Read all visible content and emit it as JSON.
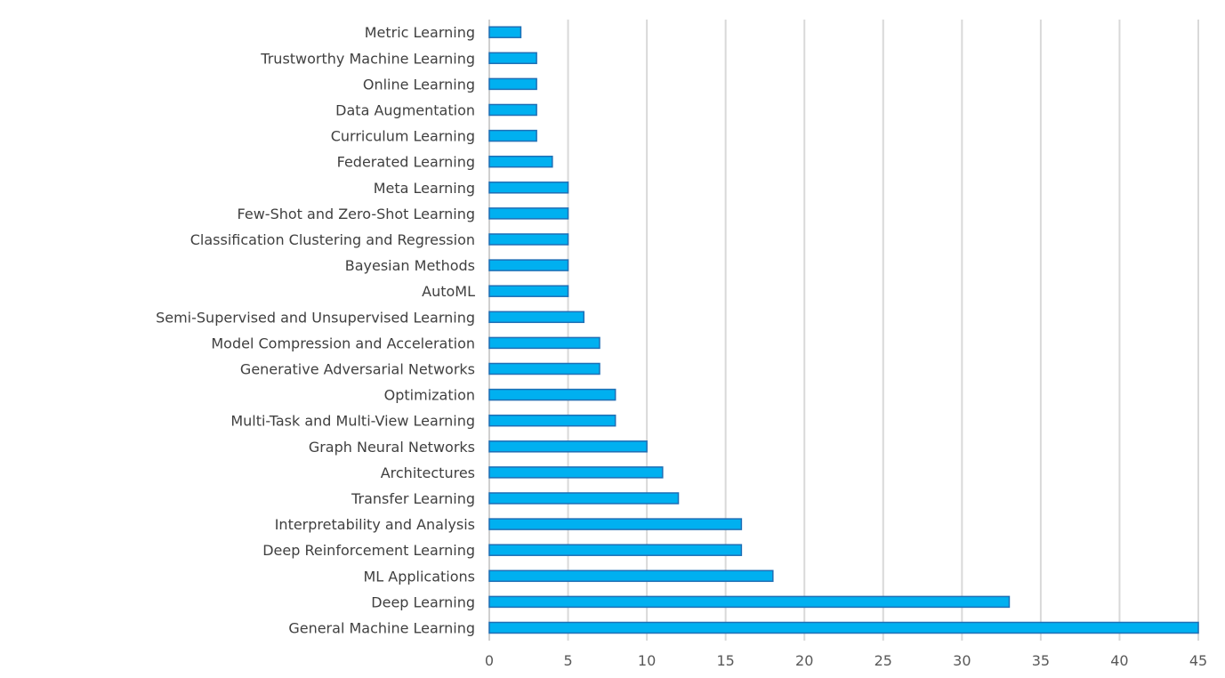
{
  "chart_data": {
    "type": "bar",
    "orientation": "horizontal",
    "title": "",
    "xlabel": "",
    "ylabel": "",
    "categories": [
      "General Machine Learning",
      "Deep Learning",
      "ML Applications",
      "Deep Reinforcement Learning",
      "Interpretability and Analysis",
      "Transfer Learning",
      "Architectures",
      "Graph Neural Networks",
      "Multi-Task and Multi-View Learning",
      "Optimization",
      "Generative Adversarial Networks",
      "Model Compression and Acceleration",
      "Semi-Supervised and Unsupervised Learning",
      "AutoML",
      "Bayesian Methods",
      "Classification Clustering and Regression",
      "Few-Shot and Zero-Shot Learning",
      "Meta Learning",
      "Federated Learning",
      "Curriculum Learning",
      "Data Augmentation",
      "Online Learning",
      "Trustworthy Machine Learning",
      "Metric Learning"
    ],
    "values": [
      45,
      33,
      18,
      16,
      16,
      12,
      11,
      10,
      8,
      8,
      7,
      7,
      6,
      5,
      5,
      5,
      5,
      5,
      4,
      3,
      3,
      3,
      3,
      2
    ],
    "xlim": [
      0,
      45
    ],
    "xticks": [
      0,
      5,
      10,
      15,
      20,
      25,
      30,
      35,
      40,
      45
    ],
    "grid": "vertical",
    "legend": "none",
    "colors": {
      "bar_fill": "#00b0f0",
      "bar_stroke": "#1f6fb5",
      "grid": "#d9d9d9"
    }
  }
}
